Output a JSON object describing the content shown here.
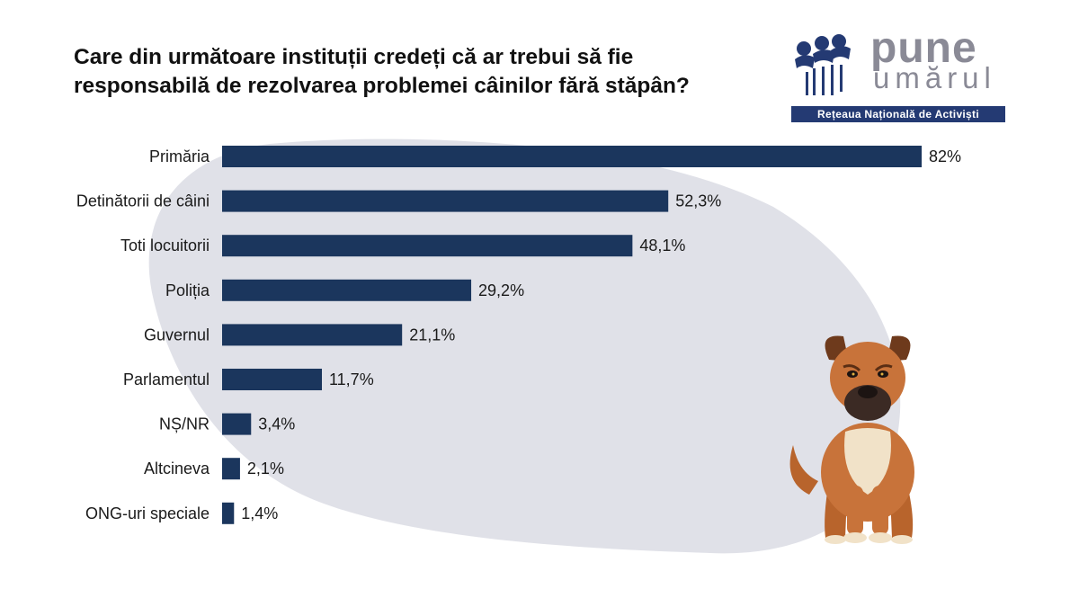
{
  "title_lines": [
    "Care din următoare instituții credeți că ar trebui să fie",
    "responsabilă de rezolvarea problemei câinilor fără stăpân?"
  ],
  "logo": {
    "word1": "pune",
    "word2": "umărul",
    "tagline": "Rețeaua Națională de Activiști"
  },
  "colors": {
    "bar": "#1b365d",
    "blob": "#e0e1e8",
    "logo_text": "#8a8a96",
    "logo_accent": "#243a73"
  },
  "chart_data": {
    "type": "bar",
    "orientation": "horizontal",
    "title": "Care din următoare instituții credeți că ar trebui să fie responsabilă de rezolvarea problemei câinilor fără stăpân?",
    "categories": [
      "Primăria",
      "Detinătorii de câini",
      "Toti locuitorii",
      "Poliția",
      "Guvernul",
      "Parlamentul",
      "NȘ/NR",
      "Altcineva",
      "ONG-uri speciale"
    ],
    "values": [
      82,
      52.3,
      48.1,
      29.2,
      21.1,
      11.7,
      3.4,
      2.1,
      1.4
    ],
    "value_labels": [
      "82%",
      "52,3%",
      "48,1%",
      "29,2%",
      "21,1%",
      "11,7%",
      "3,4%",
      "2,1%",
      "1,4%"
    ],
    "unit": "%",
    "xlim": [
      0,
      82
    ],
    "grid": false,
    "legend": "none"
  }
}
